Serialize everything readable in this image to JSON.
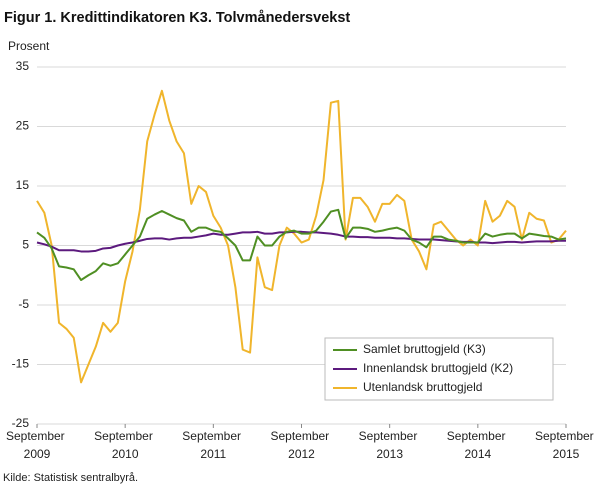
{
  "chart_data": {
    "type": "line",
    "title": "Figur 1. Kredittindikatoren K3. Tolvmånedersvekst",
    "y_label": "Prosent",
    "source": "Kilde: Statistisk sentralbyrå.",
    "categories": [
      "September 2009",
      null,
      null,
      null,
      null,
      null,
      null,
      null,
      null,
      null,
      null,
      null,
      "September 2010",
      null,
      null,
      null,
      null,
      null,
      null,
      null,
      null,
      null,
      null,
      null,
      "September 2011",
      null,
      null,
      null,
      null,
      null,
      null,
      null,
      null,
      null,
      null,
      null,
      "September 2012",
      null,
      null,
      null,
      null,
      null,
      null,
      null,
      null,
      null,
      null,
      null,
      "September 2013",
      null,
      null,
      null,
      null,
      null,
      null,
      null,
      null,
      null,
      null,
      null,
      "September 2014",
      null,
      null,
      null,
      null,
      null,
      null,
      null,
      null,
      null,
      null,
      null,
      "September 2015"
    ],
    "ylim": [
      -25,
      35
    ],
    "yticks": [
      -25,
      -15,
      -5,
      5,
      15,
      25,
      35
    ],
    "grid": true,
    "legend": "lower right",
    "series": [
      {
        "name": "Samlet bruttogjeld (K3)",
        "color": "#4f8f23",
        "values": [
          7.2,
          6.3,
          4.5,
          1.5,
          1.3,
          1,
          -0.8,
          0,
          0.7,
          2,
          1.6,
          2,
          3.5,
          5,
          6.5,
          9.5,
          10.2,
          10.8,
          10.2,
          9.6,
          9.2,
          7.3,
          8,
          8,
          7.5,
          7.3,
          6.2,
          5,
          2.5,
          2.5,
          6.5,
          5,
          5,
          6.5,
          7.3,
          7.5,
          7,
          7,
          7.5,
          9,
          10.7,
          11,
          6.2,
          8,
          8,
          7.8,
          7.3,
          7.5,
          7.8,
          8,
          7.5,
          6,
          5.5,
          4.7,
          6.5,
          6.5,
          6,
          5.8,
          5.5,
          5.5,
          5.5,
          7,
          6.5,
          6.8,
          7,
          7,
          6.2,
          7,
          6.8,
          6.6,
          6.5,
          6,
          6.2
        ]
      },
      {
        "name": "Innenlandsk bruttogjeld (K2)",
        "color": "#5c1a7e",
        "values": [
          5.5,
          5.2,
          4.8,
          4.2,
          4.2,
          4.2,
          4,
          4,
          4.1,
          4.5,
          4.6,
          5,
          5.3,
          5.5,
          5.8,
          6.1,
          6.2,
          6.2,
          6,
          6.2,
          6.3,
          6.3,
          6.5,
          6.7,
          7,
          6.8,
          6.8,
          7,
          7.2,
          7.2,
          7.3,
          7,
          7,
          7.2,
          7.2,
          7.3,
          7.3,
          7.2,
          7.2,
          7.1,
          7,
          6.8,
          6.5,
          6.5,
          6.4,
          6.4,
          6.3,
          6.3,
          6.3,
          6.2,
          6.2,
          6.1,
          6,
          6,
          6,
          5.9,
          5.8,
          5.7,
          5.6,
          5.6,
          5.5,
          5.5,
          5.4,
          5.5,
          5.6,
          5.6,
          5.5,
          5.6,
          5.7,
          5.7,
          5.7,
          5.8,
          5.8
        ]
      },
      {
        "name": "Utenlandsk bruttogjeld",
        "color": "#f0b52c",
        "values": [
          12.5,
          10.5,
          5,
          -8,
          -9,
          -10.5,
          -18,
          -15,
          -12,
          -8,
          -9.5,
          -8,
          -1,
          4,
          11,
          22.5,
          27,
          31,
          26,
          22.5,
          20.5,
          12,
          15,
          14,
          10,
          8,
          5,
          -2,
          -12.5,
          -13,
          3,
          -2,
          -2.5,
          5,
          8,
          7,
          5.5,
          6,
          10,
          16,
          29,
          29.3,
          6,
          13,
          13,
          11.5,
          9,
          12,
          12,
          13.5,
          12.5,
          6,
          4,
          1,
          8.5,
          9,
          7.5,
          6,
          5,
          6,
          5,
          12.5,
          9,
          10,
          12.5,
          11.5,
          6,
          10.5,
          9.5,
          9.2,
          5.5,
          6,
          7.5
        ]
      }
    ]
  }
}
